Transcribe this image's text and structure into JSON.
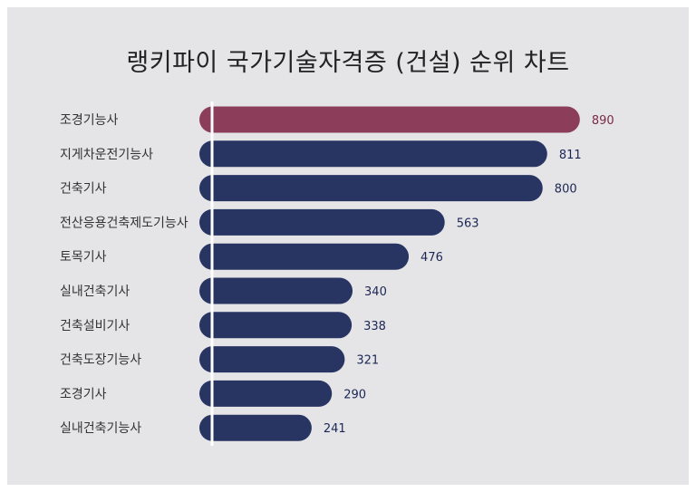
{
  "chart_data": {
    "type": "bar",
    "orientation": "horizontal",
    "title": "랭키파이 국가기술자격증 (건설) 순위 차트",
    "categories": [
      "조경기능사",
      "지게차운전기능사",
      "건축기사",
      "전산응용건축제도기능사",
      "토목기사",
      "실내건축기사",
      "건축설비기사",
      "건축도장기능사",
      "조경기사",
      "실내건축기능사"
    ],
    "values": [
      890,
      811,
      800,
      563,
      476,
      340,
      338,
      321,
      290,
      241
    ],
    "xlim": [
      0,
      1000
    ],
    "grid": false,
    "highlight_index": 0,
    "colors": {
      "highlight": "#8b3d5a",
      "bar": "#283562",
      "highlight_label": "#7a2b45",
      "label": "#1c2654",
      "axis": "#ffffff"
    }
  }
}
